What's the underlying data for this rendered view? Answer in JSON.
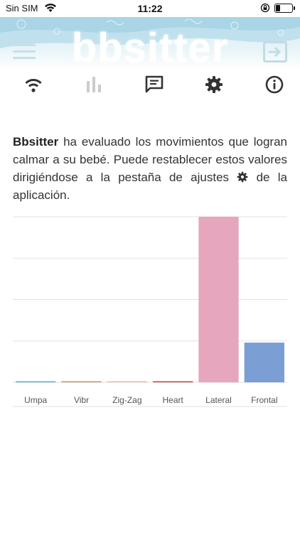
{
  "status_bar": {
    "carrier": "Sin SIM",
    "time": "11:22",
    "battery_level": 0.3
  },
  "header": {
    "logo_text": "bbsitter",
    "menu_icon": "hamburger-icon",
    "exit_icon": "exit-icon"
  },
  "tabs": [
    {
      "name": "wifi-icon",
      "active": true
    },
    {
      "name": "bar-chart-icon",
      "active": false
    },
    {
      "name": "chat-icon",
      "active": true
    },
    {
      "name": "gear-icon",
      "active": true
    },
    {
      "name": "info-icon",
      "active": true
    }
  ],
  "description": {
    "brand": "Bbsitter",
    "text_part1": " ha evaluado los movimientos que logran calmar a su bebé. Puede restablecer estos valores dirigiéndose a la pestaña de ajustes ",
    "text_part2": " de la aplicación."
  },
  "chart_data": {
    "type": "bar",
    "categories": [
      "Umpa",
      "Vibr",
      "Zig-Zag",
      "Heart",
      "Lateral",
      "Frontal"
    ],
    "values": [
      0.15,
      0.15,
      0.15,
      0.15,
      100,
      24
    ],
    "colors": [
      "#5aafc4",
      "#b99a6b",
      "#f0b9a8",
      "#cc3f3f",
      "#e6a7be",
      "#7b9ed4"
    ],
    "ylim": [
      0,
      100
    ],
    "grid": true
  },
  "colors": {
    "text": "#333333",
    "icon": "#333333",
    "icon_inactive": "#cccccc",
    "grid": "#e2e2e2"
  }
}
